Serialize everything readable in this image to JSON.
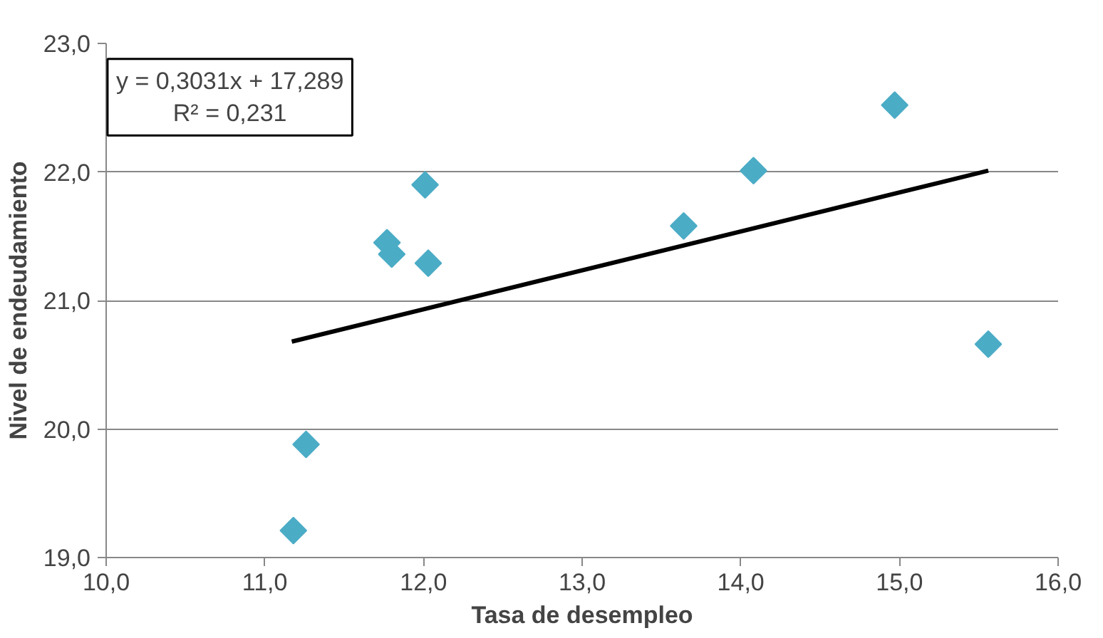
{
  "chart_data": {
    "type": "scatter",
    "xlabel": "Tasa de desempleo",
    "ylabel": "Nivel de endeudamiento",
    "xlim": [
      10.0,
      16.0
    ],
    "ylim": [
      19.0,
      23.0
    ],
    "xticks": [
      {
        "value": 10,
        "label": "10,0"
      },
      {
        "value": 11,
        "label": "11,0"
      },
      {
        "value": 12,
        "label": "12,0"
      },
      {
        "value": 13,
        "label": "13,0"
      },
      {
        "value": 14,
        "label": "14,0"
      },
      {
        "value": 15,
        "label": "15,0"
      },
      {
        "value": 16,
        "label": "16,0"
      }
    ],
    "yticks": [
      {
        "value": 19,
        "label": "19,0"
      },
      {
        "value": 20,
        "label": "20,0"
      },
      {
        "value": 21,
        "label": "21,0"
      },
      {
        "value": 22,
        "label": "22,0"
      },
      {
        "value": 23,
        "label": "23,0"
      }
    ],
    "grid": "y",
    "marker": "diamond",
    "series": [
      {
        "color": "#4bacc6",
        "x": [
          11.18,
          11.26,
          11.77,
          11.8,
          12.01,
          12.03,
          13.64,
          14.08,
          14.97,
          15.56
        ],
        "values": [
          19.21,
          19.88,
          21.45,
          21.36,
          21.9,
          21.29,
          21.58,
          22.01,
          22.52,
          20.66
        ]
      },
      {
        "type": "line",
        "color": "#000000",
        "line_style": "solid",
        "marker": "none",
        "x": [
          11.17,
          15.56
        ],
        "values": [
          20.68,
          22.01
        ]
      }
    ],
    "annotations": [
      "y = 0,3031x + 17,289\nR² = 0,231"
    ]
  }
}
